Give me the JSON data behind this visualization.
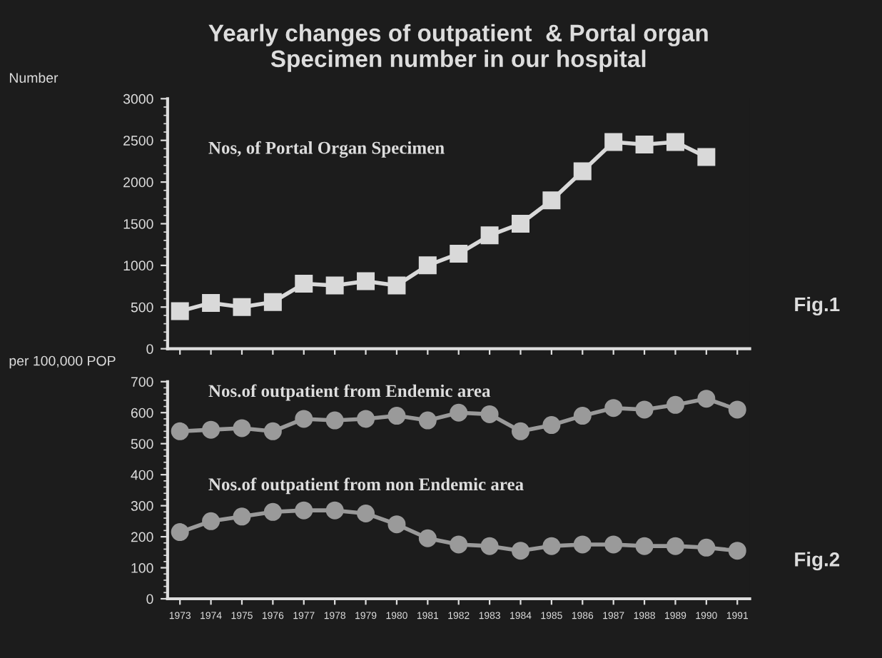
{
  "chart_data": [
    {
      "type": "line",
      "title": "Yearly changes of outpatient  & Portal organ\nSpecimen number in our hospital",
      "ylabel": "Number",
      "categories": [
        "1973",
        "1974",
        "1975",
        "1976",
        "1977",
        "1978",
        "1979",
        "1980",
        "1981",
        "1982",
        "1983",
        "1984",
        "1985",
        "1986",
        "1987",
        "1988",
        "1989",
        "1990",
        "1991"
      ],
      "series": [
        {
          "name": "Nos, of Portal Organ Specimen",
          "color": "#d9d9d9",
          "values": [
            450,
            550,
            500,
            560,
            780,
            760,
            810,
            760,
            1000,
            1140,
            1360,
            1500,
            1780,
            2130,
            2480,
            2450,
            2480,
            2300,
            null
          ]
        }
      ],
      "ylim": [
        0,
        3000
      ],
      "yticks": [
        0,
        500,
        1000,
        1500,
        2000,
        2500,
        3000
      ],
      "marker": "square",
      "tick_labels": "y",
      "grid": false,
      "legend": false,
      "annotations": [
        "Fig.1"
      ]
    },
    {
      "type": "line",
      "ylabel": "per 100,000 POP",
      "categories": [
        "1973",
        "1974",
        "1975",
        "1976",
        "1977",
        "1978",
        "1979",
        "1980",
        "1981",
        "1982",
        "1983",
        "1984",
        "1985",
        "1986",
        "1987",
        "1988",
        "1989",
        "1990",
        "1991"
      ],
      "series": [
        {
          "name": "Nos.of outpatient from Endemic area",
          "color": "#9a9a9a",
          "values": [
            540,
            545,
            550,
            540,
            580,
            575,
            580,
            590,
            575,
            600,
            595,
            540,
            560,
            590,
            615,
            610,
            625,
            645,
            610
          ]
        },
        {
          "name": "Nos.of outpatient from non Endemic area",
          "color": "#9a9a9a",
          "values": [
            215,
            250,
            265,
            280,
            285,
            285,
            275,
            240,
            195,
            175,
            170,
            155,
            170,
            175,
            175,
            170,
            170,
            165,
            155
          ]
        }
      ],
      "ylim": [
        0,
        700
      ],
      "yticks": [
        0,
        100,
        200,
        300,
        400,
        500,
        600,
        700
      ],
      "marker": "circle",
      "grid": false,
      "legend": false,
      "annotations": [
        "Fig.2"
      ]
    }
  ]
}
